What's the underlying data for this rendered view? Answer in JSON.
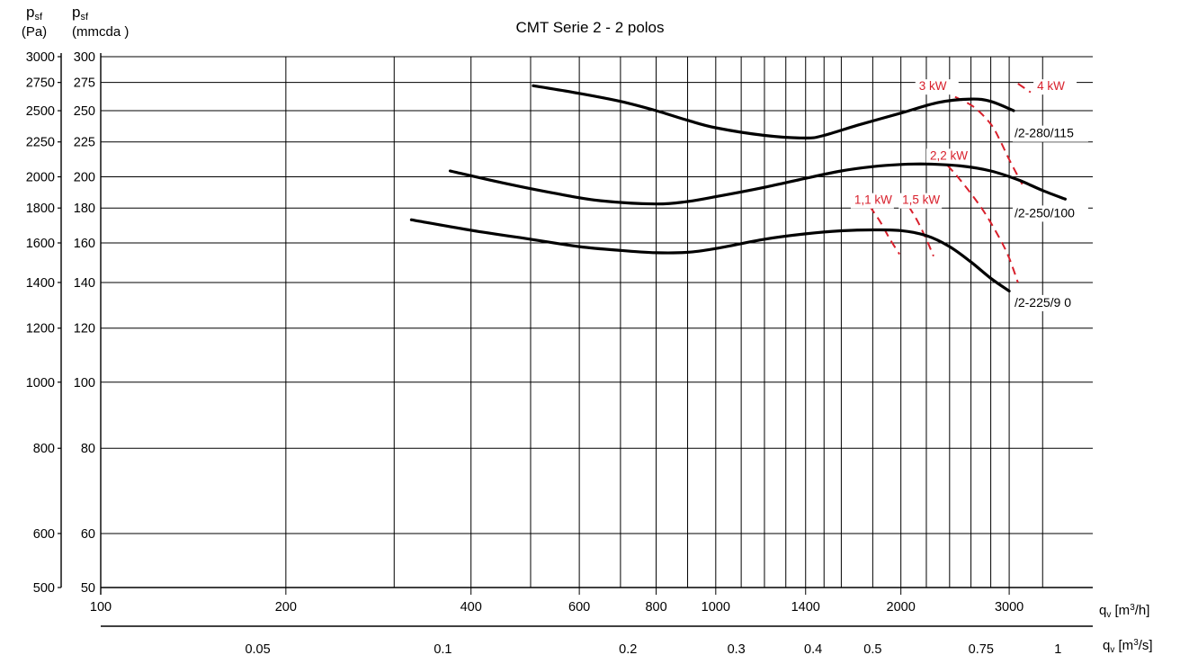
{
  "chart_data": {
    "type": "line",
    "title": "CMT Serie 2 - 2 polos",
    "y_left_label": {
      "main": "p",
      "sub": "sf",
      "unit": "(Pa)"
    },
    "y_right_label": {
      "main": "p",
      "sub": "sf",
      "unit": "(mmcda )"
    },
    "x_label_m3h": {
      "main": "q",
      "sub": "v",
      "unit_pre": " [m",
      "sup": "3",
      "unit_post": "/h]"
    },
    "x_label_m3s": {
      "main": "q",
      "sub": "v",
      "unit_pre": " [m",
      "sup": "3",
      "unit_post": "/s]"
    },
    "x_scale": "log",
    "y_scale": "log",
    "xlim_m3h": [
      100,
      3900
    ],
    "ylim_pa": [
      500,
      3000
    ],
    "x_ticks_m3h": [
      {
        "v": 100,
        "label": "100"
      },
      {
        "v": 200,
        "label": "200"
      },
      {
        "v": 400,
        "label": "400"
      },
      {
        "v": 600,
        "label": "600"
      },
      {
        "v": 800,
        "label": "800"
      },
      {
        "v": 1000,
        "label": "1000"
      },
      {
        "v": 1400,
        "label": "1400"
      },
      {
        "v": 2000,
        "label": "2000"
      },
      {
        "v": 3000,
        "label": "3000"
      }
    ],
    "x_ticks_m3s": [
      {
        "v": 0.05,
        "label": "0.05"
      },
      {
        "v": 0.1,
        "label": "0.1"
      },
      {
        "v": 0.2,
        "label": "0.2"
      },
      {
        "v": 0.3,
        "label": "0.3"
      },
      {
        "v": 0.4,
        "label": "0.4"
      },
      {
        "v": 0.5,
        "label": "0.5"
      },
      {
        "v": 0.75,
        "label": "0.75"
      },
      {
        "v": 1,
        "label": "1"
      }
    ],
    "x_grid_m3h": [
      200,
      300,
      400,
      500,
      600,
      700,
      800,
      900,
      1000,
      1100,
      1200,
      1300,
      1400,
      1500,
      1600,
      1800,
      2000,
      2200,
      2400,
      2600,
      2800,
      3000,
      3400
    ],
    "y_ticks_pa": [
      {
        "v": 500,
        "label": "500"
      },
      {
        "v": 600,
        "label": "600"
      },
      {
        "v": 800,
        "label": "800"
      },
      {
        "v": 1000,
        "label": "1000"
      },
      {
        "v": 1200,
        "label": "1200"
      },
      {
        "v": 1400,
        "label": "1400"
      },
      {
        "v": 1600,
        "label": "1600"
      },
      {
        "v": 1800,
        "label": "1800"
      },
      {
        "v": 2000,
        "label": "2000"
      },
      {
        "v": 2250,
        "label": "2250"
      },
      {
        "v": 2500,
        "label": "2500"
      },
      {
        "v": 2750,
        "label": "2750"
      },
      {
        "v": 3000,
        "label": "3000"
      }
    ],
    "y_ticks_mmcda": [
      {
        "v": 50,
        "label": "50"
      },
      {
        "v": 60,
        "label": "60"
      },
      {
        "v": 80,
        "label": "80"
      },
      {
        "v": 100,
        "label": "100"
      },
      {
        "v": 120,
        "label": "120"
      },
      {
        "v": 140,
        "label": "140"
      },
      {
        "v": 160,
        "label": "160"
      },
      {
        "v": 180,
        "label": "180"
      },
      {
        "v": 200,
        "label": "200"
      },
      {
        "v": 225,
        "label": "225"
      },
      {
        "v": 250,
        "label": "250"
      },
      {
        "v": 275,
        "label": "275"
      },
      {
        "v": 300,
        "label": "300"
      }
    ],
    "grid": true,
    "series": [
      {
        "name": "/2-280/115",
        "points": [
          [
            505,
            2720
          ],
          [
            600,
            2650
          ],
          [
            700,
            2580
          ],
          [
            800,
            2500
          ],
          [
            900,
            2420
          ],
          [
            1000,
            2360
          ],
          [
            1200,
            2300
          ],
          [
            1400,
            2280
          ],
          [
            1500,
            2300
          ],
          [
            1700,
            2380
          ],
          [
            2000,
            2480
          ],
          [
            2300,
            2570
          ],
          [
            2600,
            2600
          ],
          [
            2800,
            2580
          ],
          [
            3050,
            2500
          ]
        ]
      },
      {
        "name": "/2-250/100",
        "points": [
          [
            370,
            2040
          ],
          [
            450,
            1960
          ],
          [
            550,
            1890
          ],
          [
            650,
            1845
          ],
          [
            800,
            1825
          ],
          [
            900,
            1840
          ],
          [
            1000,
            1870
          ],
          [
            1200,
            1930
          ],
          [
            1400,
            1990
          ],
          [
            1600,
            2040
          ],
          [
            1800,
            2070
          ],
          [
            2000,
            2085
          ],
          [
            2200,
            2088
          ],
          [
            2500,
            2075
          ],
          [
            2800,
            2040
          ],
          [
            3100,
            1980
          ],
          [
            3400,
            1910
          ],
          [
            3700,
            1855
          ]
        ]
      },
      {
        "name": "/2-225/9 0",
        "points": [
          [
            320,
            1730
          ],
          [
            400,
            1670
          ],
          [
            500,
            1620
          ],
          [
            600,
            1580
          ],
          [
            700,
            1560
          ],
          [
            800,
            1548
          ],
          [
            900,
            1550
          ],
          [
            1000,
            1570
          ],
          [
            1200,
            1620
          ],
          [
            1400,
            1650
          ],
          [
            1600,
            1667
          ],
          [
            1800,
            1672
          ],
          [
            2000,
            1668
          ],
          [
            2200,
            1640
          ],
          [
            2400,
            1580
          ],
          [
            2600,
            1500
          ],
          [
            2800,
            1420
          ],
          [
            3000,
            1360
          ]
        ]
      }
    ],
    "curve_labels": [
      {
        "series": 0,
        "text": "/2-280/115",
        "x": 3060,
        "y": 2285
      },
      {
        "series": 1,
        "text": "/2-250/100",
        "x": 3060,
        "y": 1745
      },
      {
        "series": 2,
        "text": "/2-225/9 0",
        "x": 3060,
        "y": 1290
      }
    ],
    "power_lines": [
      {
        "label": "3 kW",
        "points": [
          [
            2450,
            2620
          ],
          [
            2630,
            2530
          ],
          [
            2800,
            2390
          ],
          [
            2900,
            2260
          ],
          [
            3000,
            2120
          ],
          [
            3150,
            1950
          ]
        ],
        "label_pos": [
          2140,
          2680
        ]
      },
      {
        "label": "4 kW",
        "points": [
          [
            3100,
            2740
          ],
          [
            3250,
            2660
          ]
        ],
        "label_pos": [
          3330,
          2680
        ]
      },
      {
        "label": "2,2 kW",
        "points": [
          [
            2300,
            2150
          ],
          [
            2450,
            2020
          ],
          [
            2600,
            1890
          ],
          [
            2750,
            1760
          ],
          [
            2900,
            1620
          ],
          [
            3000,
            1520
          ],
          [
            3100,
            1400
          ]
        ],
        "label_pos": [
          2230,
          2120
        ]
      },
      {
        "label": "1,1 kW",
        "points": [
          [
            1780,
            1810
          ],
          [
            1850,
            1720
          ],
          [
            1920,
            1620
          ],
          [
            1990,
            1540
          ]
        ],
        "label_pos": [
          1680,
          1825
        ]
      },
      {
        "label": "1,5 kW",
        "points": [
          [
            2060,
            1810
          ],
          [
            2130,
            1720
          ],
          [
            2200,
            1620
          ],
          [
            2260,
            1530
          ]
        ],
        "label_pos": [
          2010,
          1825
        ]
      }
    ],
    "colors": {
      "curves": "#000000",
      "power_lines": "#d8202c",
      "grid": "#000000"
    }
  }
}
